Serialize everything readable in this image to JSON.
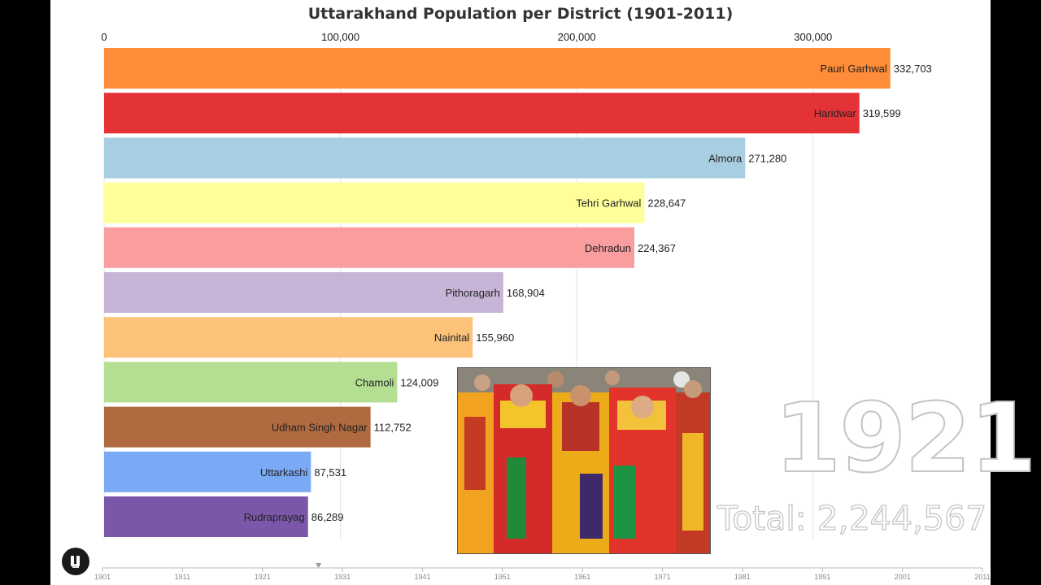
{
  "chart_data": {
    "type": "bar",
    "orientation": "horizontal",
    "title": "Uttarakhand Population per District (1901-2011)",
    "xlim": [
      0,
      340000
    ],
    "x_ticks": [
      0,
      100000,
      200000,
      300000
    ],
    "x_tick_labels": [
      "0",
      "100,000",
      "200,000",
      "300,000"
    ],
    "grid": true,
    "categories": [
      "Pauri Garhwal",
      "Haridwar",
      "Almora",
      "Tehri Garhwal",
      "Dehradun",
      "Pithoragarh",
      "Nainital",
      "Chamoli",
      "Udham Singh Nagar",
      "Uttarkashi",
      "Rudraprayag"
    ],
    "values": [
      332703,
      319599,
      271280,
      228647,
      224367,
      168904,
      155960,
      124009,
      112752,
      87531,
      86289
    ],
    "value_labels": [
      "332,703",
      "319,599",
      "271,280",
      "228,647",
      "224,367",
      "168,904",
      "155,960",
      "124,009",
      "112,752",
      "87,531",
      "86,289"
    ],
    "colors": [
      "#ff8c38",
      "#e43337",
      "#a8cfe1",
      "#ffff99",
      "#f99d9e",
      "#c8b4d6",
      "#fcc27a",
      "#b4df92",
      "#b06a40",
      "#7aa9f5",
      "#7b57a9"
    ],
    "current_year": "1921",
    "total_label": "Total: 2,244,567",
    "timeline": {
      "years": [
        "1901",
        "1911",
        "1921",
        "1931",
        "1941",
        "1951",
        "1961",
        "1971",
        "1981",
        "1991",
        "2001",
        "2011"
      ],
      "position_year": 1928
    }
  },
  "photo": {
    "description_icon": "folk-dancers-photo"
  },
  "controls": {
    "play_icon": "pause-icon"
  }
}
